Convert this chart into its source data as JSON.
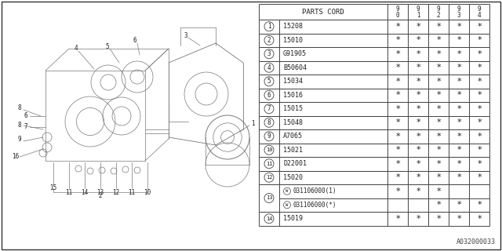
{
  "watermark": "A032000033",
  "bg_color": "#ffffff",
  "table": {
    "rows": [
      {
        "num": "1",
        "part": "15208",
        "cols": [
          "*",
          "*",
          "*",
          "*",
          "*"
        ],
        "w_prefix": false
      },
      {
        "num": "2",
        "part": "15010",
        "cols": [
          "*",
          "*",
          "*",
          "*",
          "*"
        ],
        "w_prefix": false
      },
      {
        "num": "3",
        "part": "G91905",
        "cols": [
          "*",
          "*",
          "*",
          "*",
          "*"
        ],
        "w_prefix": false
      },
      {
        "num": "4",
        "part": "B50604",
        "cols": [
          "*",
          "*",
          "*",
          "*",
          "*"
        ],
        "w_prefix": false
      },
      {
        "num": "5",
        "part": "15034",
        "cols": [
          "*",
          "*",
          "*",
          "*",
          "*"
        ],
        "w_prefix": false
      },
      {
        "num": "6",
        "part": "15016",
        "cols": [
          "*",
          "*",
          "*",
          "*",
          "*"
        ],
        "w_prefix": false
      },
      {
        "num": "7",
        "part": "15015",
        "cols": [
          "*",
          "*",
          "*",
          "*",
          "*"
        ],
        "w_prefix": false
      },
      {
        "num": "8",
        "part": "15048",
        "cols": [
          "*",
          "*",
          "*",
          "*",
          "*"
        ],
        "w_prefix": false
      },
      {
        "num": "9",
        "part": "A7065",
        "cols": [
          "*",
          "*",
          "*",
          "*",
          "*"
        ],
        "w_prefix": false
      },
      {
        "num": "10",
        "part": "15021",
        "cols": [
          "*",
          "*",
          "*",
          "*",
          "*"
        ],
        "w_prefix": false
      },
      {
        "num": "11",
        "part": "D22001",
        "cols": [
          "*",
          "*",
          "*",
          "*",
          "*"
        ],
        "w_prefix": false
      },
      {
        "num": "12",
        "part": "15020",
        "cols": [
          "*",
          "*",
          "*",
          "*",
          "*"
        ],
        "w_prefix": false
      },
      {
        "num": "13",
        "part_a": "031106000(1)",
        "part_b": "031106000(*)",
        "cols_a": [
          "*",
          "*",
          "*",
          "",
          ""
        ],
        "cols_b": [
          "",
          "",
          "*",
          "*",
          "*"
        ],
        "w_prefix": true
      },
      {
        "num": "14",
        "part": "15019",
        "cols": [
          "*",
          "*",
          "*",
          "*",
          "*"
        ],
        "w_prefix": false
      }
    ]
  },
  "lc": "#444444",
  "dc": "#888888",
  "fs": 6.0
}
